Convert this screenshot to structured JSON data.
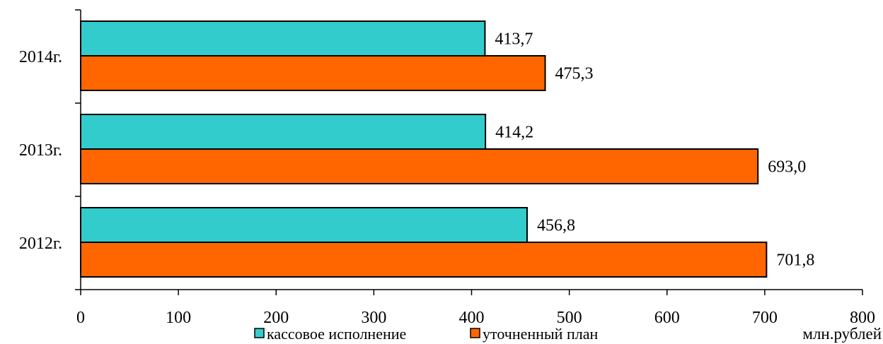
{
  "chart_data": {
    "type": "bar",
    "orientation": "horizontal",
    "categories": [
      "2014г.",
      "2013г.",
      "2012г."
    ],
    "series": [
      {
        "name": "кассовое исполнение",
        "color": "#33CCCC",
        "values": [
          413.7,
          414.2,
          456.8
        ],
        "labels": [
          "413,7",
          "414,2",
          "456,8"
        ]
      },
      {
        "name": "уточненный план",
        "color": "#FF6600",
        "values": [
          475.3,
          693.0,
          701.8
        ],
        "labels": [
          "475,3",
          "693,0",
          "701,8"
        ]
      }
    ],
    "xlim": [
      0,
      800
    ],
    "xticks": [
      0,
      100,
      200,
      300,
      400,
      500,
      600,
      700,
      800
    ],
    "xlabel": "млн.рублей",
    "ylabel": "",
    "title": "",
    "grid": false,
    "legend": "bottom"
  }
}
